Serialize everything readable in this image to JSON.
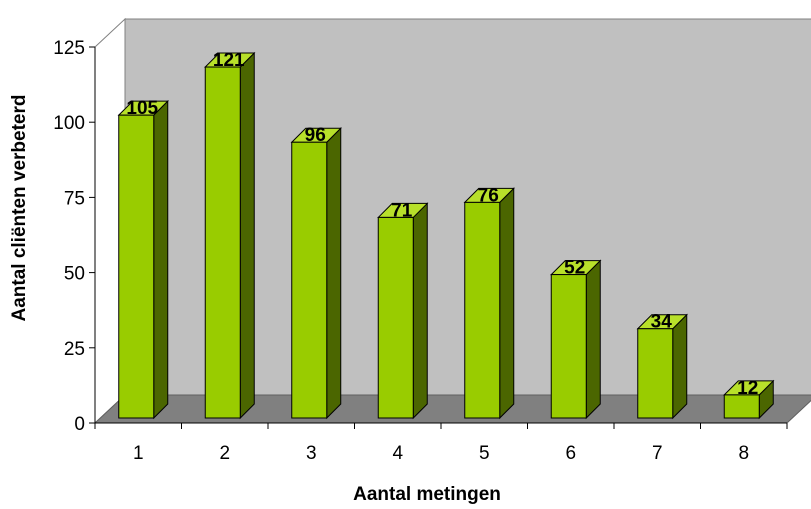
{
  "chart_data": {
    "type": "bar",
    "title": "",
    "xlabel": "Aantal metingen",
    "ylabel": "Aantal cliënten verbeterd",
    "categories": [
      "1",
      "2",
      "3",
      "4",
      "5",
      "6",
      "7",
      "8"
    ],
    "values": [
      105,
      121,
      96,
      71,
      76,
      52,
      34,
      12
    ],
    "ylim": [
      0,
      125
    ],
    "yticks": [
      0,
      25,
      50,
      75,
      100,
      125
    ],
    "data_labels": true,
    "grid": false,
    "legend": "none",
    "three_d": true
  },
  "colors": {
    "bar_front": "#99cc00",
    "bar_side": "#4b6600",
    "bar_top": "#b8e02a",
    "wall": "#c0c0c0",
    "floor": "#808080",
    "axis": "#000000"
  }
}
